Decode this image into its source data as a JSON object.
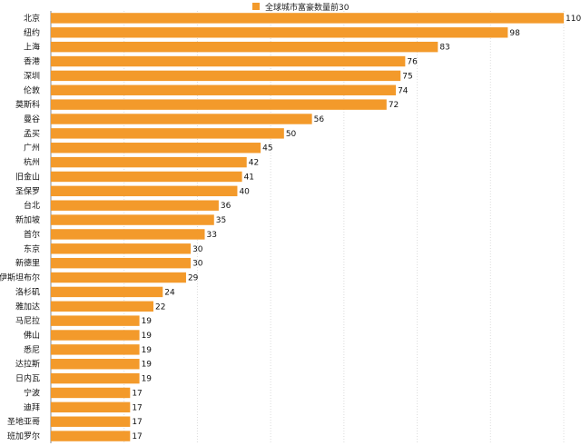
{
  "chart_data": {
    "type": "bar",
    "orientation": "horizontal",
    "legend": {
      "label": "全球城市富豪数量前30",
      "position": "top-center",
      "color": "#f39a2b"
    },
    "bar_color": "#f39a2b",
    "grid": true,
    "xlim": [
      0,
      110
    ],
    "categories": [
      "北京",
      "纽约",
      "上海",
      "香港",
      "深圳",
      "伦敦",
      "莫斯科",
      "曼谷",
      "孟买",
      "广州",
      "杭州",
      "旧金山",
      "圣保罗",
      "台北",
      "新加坡",
      "首尔",
      "东京",
      "新德里",
      "伊斯坦布尔",
      "洛杉矶",
      "雅加达",
      "马尼拉",
      "佛山",
      "悉尼",
      "达拉斯",
      "日内瓦",
      "宁波",
      "迪拜",
      "圣地亚哥",
      "班加罗尔"
    ],
    "values": [
      110,
      98,
      83,
      76,
      75,
      74,
      72,
      56,
      50,
      45,
      42,
      41,
      40,
      36,
      35,
      33,
      30,
      30,
      29,
      24,
      22,
      19,
      19,
      19,
      19,
      19,
      17,
      17,
      17,
      17
    ],
    "series": [
      {
        "name": "全球城市富豪数量前30",
        "values": [
          110,
          98,
          83,
          76,
          75,
          74,
          72,
          56,
          50,
          45,
          42,
          41,
          40,
          36,
          35,
          33,
          30,
          30,
          29,
          24,
          22,
          19,
          19,
          19,
          19,
          19,
          17,
          17,
          17,
          17
        ]
      }
    ]
  }
}
